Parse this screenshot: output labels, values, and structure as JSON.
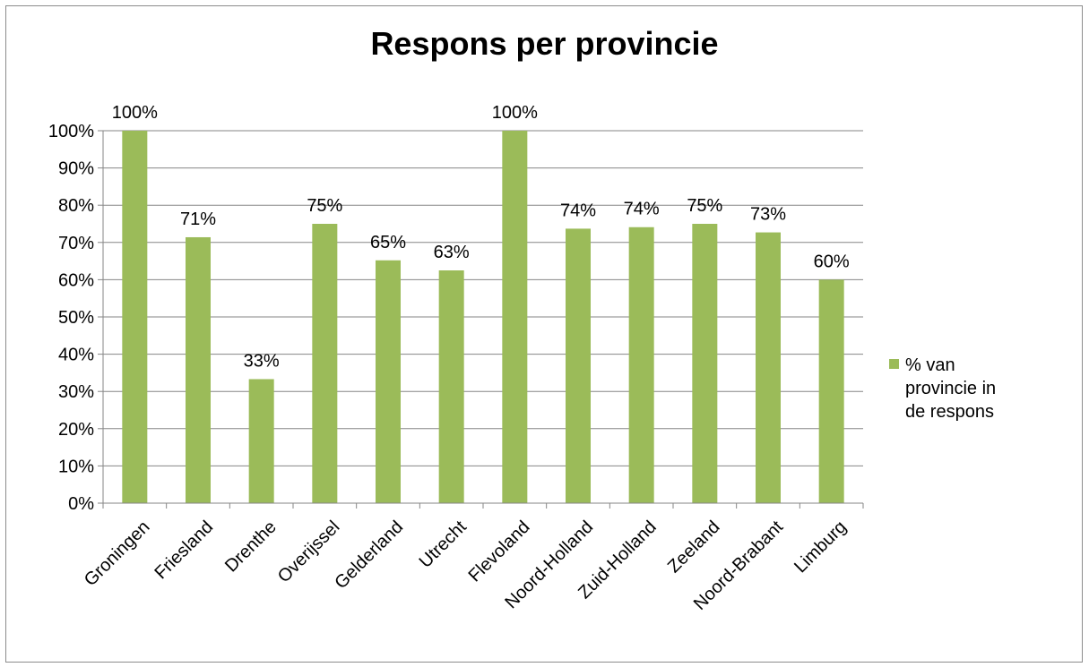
{
  "chart_data": {
    "type": "bar",
    "title": "Respons per provincie",
    "xlabel": "",
    "ylabel": "",
    "ylim": [
      0,
      100
    ],
    "yticks": [
      "0%",
      "10%",
      "20%",
      "30%",
      "40%",
      "50%",
      "60%",
      "70%",
      "80%",
      "90%",
      "100%"
    ],
    "grid": true,
    "legend_position": "right",
    "bar_color": "#9bbb59",
    "categories": [
      "Groningen",
      "Friesland",
      "Drenthe",
      "Overijssel",
      "Gelderland",
      "Utrecht",
      "Flevoland",
      "Noord-Holland",
      "Zuid-Holland",
      "Zeeland",
      "Noord-Brabant",
      "Limburg"
    ],
    "series": [
      {
        "name": "% van provincie in de respons",
        "values": [
          100,
          71.4,
          33.3,
          75,
          65.2,
          62.5,
          100,
          73.7,
          74.1,
          75,
          72.7,
          60
        ],
        "labels": [
          "100%",
          "71%",
          "33%",
          "75%",
          "65%",
          "63%",
          "100%",
          "74%",
          "74%",
          "75%",
          "73%",
          "60%"
        ]
      }
    ],
    "legend_lines": [
      "% van",
      "provincie in",
      "de respons"
    ]
  }
}
